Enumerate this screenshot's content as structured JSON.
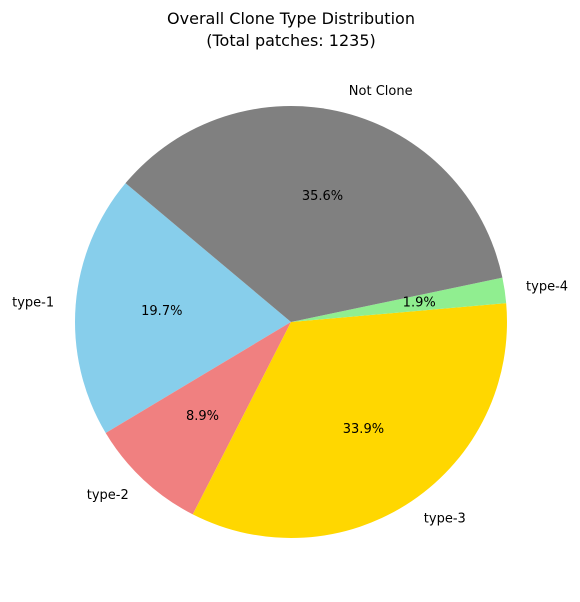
{
  "chart_data": {
    "type": "pie",
    "title": "Overall Clone Type Distribution",
    "subtitle": "(Total patches: 1235)",
    "start_angle_deg": 140,
    "direction": "counterclockwise",
    "slices": [
      {
        "label": "type-1",
        "value": 19.7,
        "pct_label": "19.7%",
        "color": "#87CEEB"
      },
      {
        "label": "type-2",
        "value": 8.9,
        "pct_label": "8.9%",
        "color": "#F08080"
      },
      {
        "label": "type-3",
        "value": 33.9,
        "pct_label": "33.9%",
        "color": "#FFD700"
      },
      {
        "label": "type-4",
        "value": 1.9,
        "pct_label": "1.9%",
        "color": "#90EE90"
      },
      {
        "label": "Not Clone",
        "value": 35.6,
        "pct_label": "35.6%",
        "color": "#808080"
      }
    ]
  }
}
